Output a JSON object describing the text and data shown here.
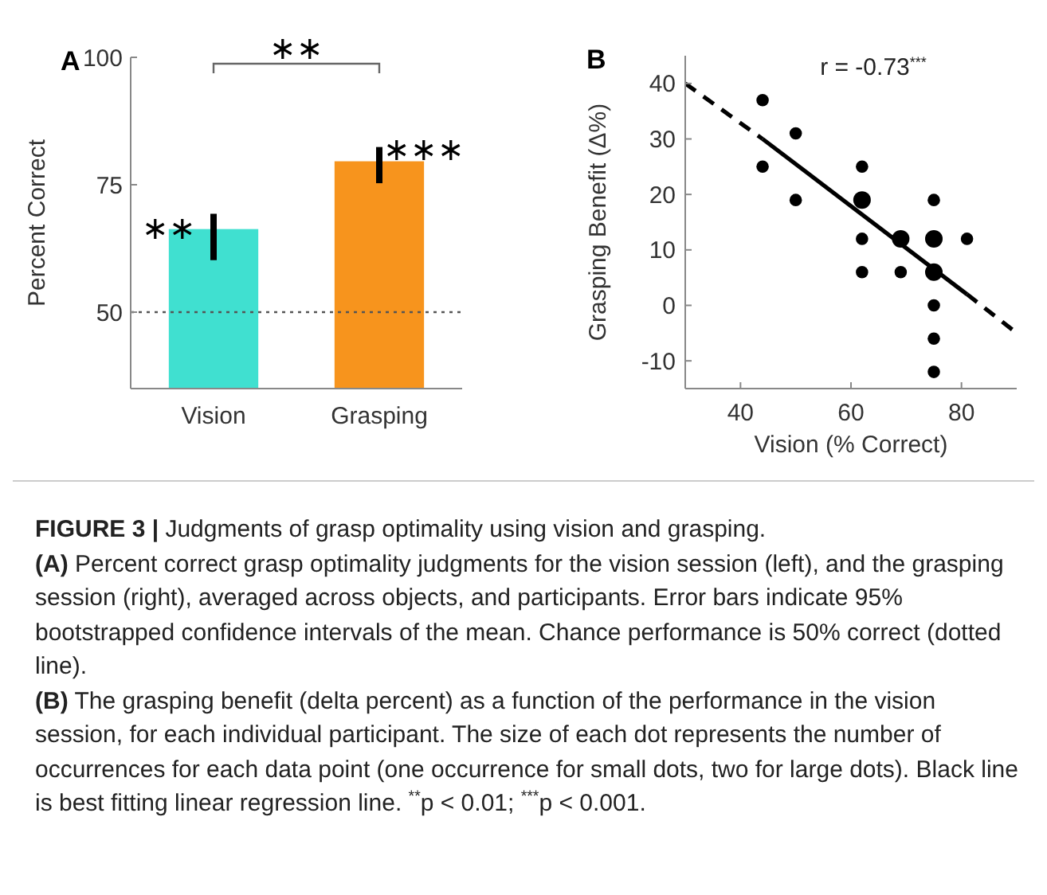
{
  "chart_data": [
    {
      "type": "bar",
      "title": "A",
      "ylabel": "Percent Correct",
      "categories": [
        "Vision",
        "Grasping"
      ],
      "values": [
        66.3,
        79.6
      ],
      "colors": [
        "#40e0d0",
        "#f7941d"
      ],
      "errors": [
        [
          60.2,
          69.3
        ],
        [
          75.3,
          82.4
        ]
      ],
      "ylim": [
        35,
        100
      ],
      "yticks": [
        50,
        75,
        100
      ],
      "grid": false,
      "ref_lines": [
        {
          "axis": "y",
          "value": 50,
          "color": "#555555",
          "line_style": "dotted"
        }
      ],
      "annotations": [
        "∗∗",
        "∗∗∗",
        "∗∗"
      ]
    },
    {
      "type": "bubble",
      "title": "B",
      "xlabel": "Vision (% Correct)",
      "ylabel": "Grasping Benefit (Δ%)",
      "xlim": [
        30,
        90
      ],
      "xticks": [
        40,
        60,
        80
      ],
      "ylim": [
        -15,
        45
      ],
      "yticks": [
        -10,
        0,
        10,
        20,
        30,
        40
      ],
      "grid": false,
      "series": [
        {
          "type": "bubble",
          "color": "#000000",
          "x": [
            44,
            44,
            50,
            50,
            62,
            62,
            62,
            62,
            69,
            69,
            75,
            75,
            75,
            75,
            75,
            75,
            81
          ],
          "values": [
            37,
            25,
            31,
            19,
            25,
            19,
            12,
            6,
            12,
            6,
            19,
            12,
            6,
            0,
            -6,
            -12,
            12
          ],
          "sizes": [
            0.5,
            0.5,
            0.5,
            0.5,
            0.5,
            1,
            0.5,
            0.5,
            1,
            0.5,
            0.5,
            1,
            1,
            0.5,
            0.5,
            0.5,
            0.5
          ]
        },
        {
          "type": "line",
          "color": "#000000",
          "line_style": "solid",
          "x": [
            44,
            81
          ],
          "values": [
            30,
            2
          ]
        },
        {
          "type": "line",
          "color": "#000000",
          "line_style": "dashed",
          "x": [
            30,
            44,
            62,
            81,
            90
          ],
          "values": [
            40,
            30,
            null,
            2,
            -5
          ]
        }
      ],
      "annotations": [
        "r = -0.73$^{***}$"
      ]
    },
    {
      "type": "other",
      "title": "FIGURE 3 |",
      "subtitle": "Judgments of grasp optimality using vision and grasping.",
      "annotations": [
        "(A)",
        "Percent correct grasp optimality judgments for the vision session (left), and the grasping session (right), averaged across objects, and participants. Error bars indicate 95% bootstrapped confidence intervals of the mean. Chance performance is 50% correct (dotted line).",
        "(B)",
        "The grasping benefit (delta percent) as a function of the performance in the vision session, for each individual participant. The size of each dot represents the number of occurrences for each data point (one occurrence for small dots, two for large dots). Black line is best fitting linear regression line. $^{**}$p < 0.01; $^{***}$p < 0.001."
      ]
    }
  ]
}
